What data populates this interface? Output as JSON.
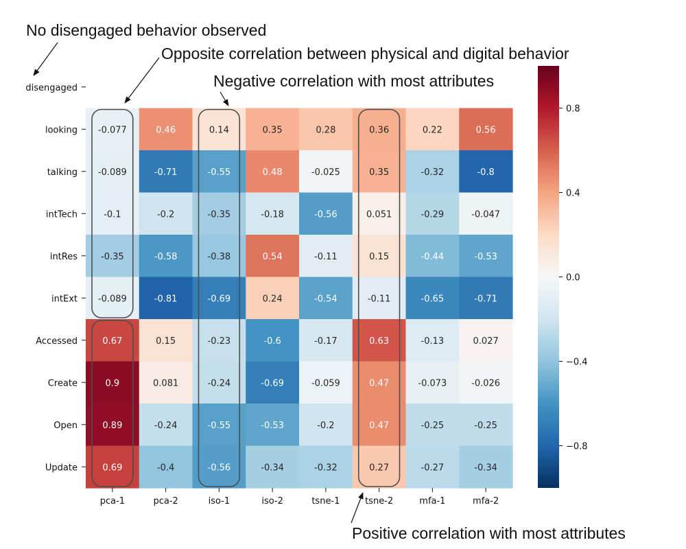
{
  "chart_data": {
    "type": "heatmap",
    "rows": [
      "disengaged",
      "looking",
      "talking",
      "intTech",
      "intRes",
      "intExt",
      "Accessed",
      "Create",
      "Open",
      "Update"
    ],
    "columns": [
      "pca-1",
      "pca-2",
      "iso-1",
      "iso-2",
      "tsne-1",
      "tsne-2",
      "mfa-1",
      "mfa-2"
    ],
    "values": [
      [
        null,
        null,
        null,
        null,
        null,
        null,
        null,
        null
      ],
      [
        -0.077,
        0.46,
        0.14,
        0.35,
        0.28,
        0.36,
        0.22,
        0.56
      ],
      [
        -0.089,
        -0.71,
        -0.55,
        0.48,
        -0.025,
        0.35,
        -0.32,
        -0.8
      ],
      [
        -0.1,
        -0.2,
        -0.35,
        -0.18,
        -0.56,
        0.051,
        -0.29,
        -0.047
      ],
      [
        -0.35,
        -0.58,
        -0.38,
        0.54,
        -0.11,
        0.15,
        -0.44,
        -0.53
      ],
      [
        -0.089,
        -0.81,
        -0.69,
        0.24,
        -0.54,
        -0.11,
        -0.65,
        -0.71
      ],
      [
        0.67,
        0.15,
        -0.23,
        -0.6,
        -0.17,
        0.63,
        -0.13,
        0.027
      ],
      [
        0.9,
        0.081,
        -0.24,
        -0.69,
        -0.059,
        0.47,
        -0.073,
        -0.026
      ],
      [
        0.89,
        -0.24,
        -0.55,
        -0.53,
        -0.2,
        0.47,
        -0.25,
        -0.25
      ],
      [
        0.69,
        -0.4,
        -0.56,
        -0.34,
        -0.32,
        0.27,
        -0.27,
        -0.34
      ]
    ],
    "labels": [
      [
        "",
        "",
        "",
        "",
        "",
        "",
        "",
        ""
      ],
      [
        "-0.077",
        "0.46",
        "0.14",
        "0.35",
        "0.28",
        "0.36",
        "0.22",
        "0.56"
      ],
      [
        "-0.089",
        "-0.71",
        "-0.55",
        "0.48",
        "-0.025",
        "0.35",
        "-0.32",
        "-0.8"
      ],
      [
        "-0.1",
        "-0.2",
        "-0.35",
        "-0.18",
        "-0.56",
        "0.051",
        "-0.29",
        "-0.047"
      ],
      [
        "-0.35",
        "-0.58",
        "-0.38",
        "0.54",
        "-0.11",
        "0.15",
        "-0.44",
        "-0.53"
      ],
      [
        "-0.089",
        "-0.81",
        "-0.69",
        "0.24",
        "-0.54",
        "-0.11",
        "-0.65",
        "-0.71"
      ],
      [
        "0.67",
        "0.15",
        "-0.23",
        "-0.6",
        "-0.17",
        "0.63",
        "-0.13",
        "0.027"
      ],
      [
        "0.9",
        "0.081",
        "-0.24",
        "-0.69",
        "-0.059",
        "0.47",
        "-0.073",
        "-0.026"
      ],
      [
        "0.89",
        "-0.24",
        "-0.55",
        "-0.53",
        "-0.2",
        "0.47",
        "-0.25",
        "-0.25"
      ],
      [
        "0.69",
        "-0.4",
        "-0.56",
        "-0.34",
        "-0.32",
        "0.27",
        "-0.27",
        "-0.34"
      ]
    ],
    "vmin": -1,
    "vmax": 1,
    "colormap": "RdBu_r",
    "colorbar": {
      "ticks": [
        0.8,
        0.4,
        0.0,
        -0.4,
        -0.8
      ],
      "tick_labels": [
        "0.8",
        "0.4",
        "0.0",
        "−0.4",
        "−0.8"
      ]
    },
    "title": "",
    "xlabel": "",
    "ylabel": "",
    "annotations": [
      {
        "text": "No disengaged behavior  observed",
        "target": "disengaged row"
      },
      {
        "text": "Opposite correlation between physical and digital behavior",
        "target": "pca-1 column"
      },
      {
        "text": "Negative correlation with most attributes",
        "target": "iso-1 column"
      },
      {
        "text": "Positive correlation with most attributes",
        "target": "tsne-2 column"
      }
    ]
  }
}
